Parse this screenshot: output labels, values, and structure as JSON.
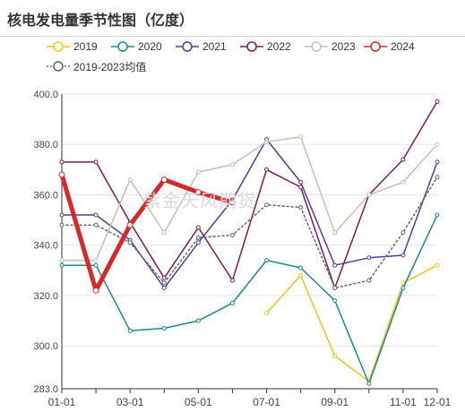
{
  "title": "核电发电量季节性图（亿度）",
  "watermark": "紫金天风期货",
  "chart_data": {
    "type": "line",
    "title": "核电发电量季节性图（亿度）",
    "x": [
      "01-01",
      "02-01",
      "03-01",
      "04-01",
      "05-01",
      "06-01",
      "07-01",
      "08-01",
      "09-01",
      "10-01",
      "11-01",
      "12-01"
    ],
    "xticks": [
      "01-01",
      "03-01",
      "05-01",
      "07-01",
      "09-01",
      "11-01",
      "12-01"
    ],
    "ylim": [
      283.0,
      400.0
    ],
    "yticks": [
      "283.0",
      "300.0",
      "320.0",
      "340.0",
      "360.0",
      "380.0",
      "400.0"
    ],
    "grid": "horizontal",
    "legend_position": "top",
    "series": [
      {
        "name": "2019",
        "color": "#f0c419",
        "style": "solid",
        "values": [
          null,
          null,
          null,
          null,
          null,
          null,
          313,
          328,
          296,
          286,
          325,
          332
        ]
      },
      {
        "name": "2020",
        "color": "#1a8a8a",
        "style": "solid",
        "values": [
          332,
          332,
          306,
          307,
          310,
          317,
          334,
          331,
          318,
          285,
          323,
          352
        ]
      },
      {
        "name": "2021",
        "color": "#4b3f99",
        "style": "solid",
        "values": [
          352,
          352,
          342,
          323,
          341,
          358,
          382,
          365,
          332,
          335,
          336,
          373
        ]
      },
      {
        "name": "2022",
        "color": "#7a1b5a",
        "style": "solid",
        "values": [
          373,
          373,
          349,
          327,
          347,
          326,
          370,
          363,
          323,
          360,
          374,
          397
        ]
      },
      {
        "name": "2023",
        "color": "#c8bfae",
        "style": "solid",
        "values": [
          334,
          334,
          366,
          345,
          369,
          372,
          381,
          383,
          345,
          360,
          365,
          380
        ]
      },
      {
        "name": "2024",
        "color": "#d62a2a",
        "style": "solid",
        "width": 5,
        "values": [
          368,
          322,
          348,
          366,
          361,
          357,
          null,
          null,
          null,
          null,
          null,
          null
        ]
      },
      {
        "name": "2019-2023均值",
        "color": "#666666",
        "style": "dotted",
        "values": [
          348,
          348,
          341,
          325,
          343,
          344,
          356,
          355,
          323,
          326,
          345,
          367
        ]
      }
    ]
  }
}
